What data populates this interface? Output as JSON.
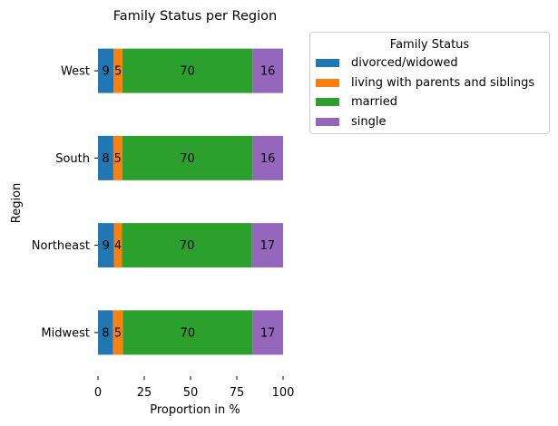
{
  "chart_data": {
    "type": "bar",
    "orientation": "horizontal",
    "stacked": true,
    "title": "Family Status per Region",
    "xlabel": "Proportion in %",
    "ylabel": "Region",
    "xlim": [
      0,
      100
    ],
    "xticks": [
      0,
      25,
      50,
      75,
      100
    ],
    "categories": [
      "West",
      "South",
      "Northeast",
      "Midwest"
    ],
    "series": [
      {
        "name": "divorced/widowed",
        "color": "#1f77b4",
        "values": [
          8.5,
          8.3,
          8.6,
          8.2
        ],
        "labels": [
          "9",
          "8",
          "9",
          "8"
        ]
      },
      {
        "name": "living with parents and siblings",
        "color": "#ff7f0e",
        "values": [
          4.7,
          4.8,
          4.4,
          5.2
        ],
        "labels": [
          "5",
          "5",
          "4",
          "5"
        ]
      },
      {
        "name": "married",
        "color": "#2ca02c",
        "values": [
          70.3,
          70.4,
          70.2,
          70.1
        ],
        "labels": [
          "70",
          "70",
          "70",
          "70"
        ]
      },
      {
        "name": "single",
        "color": "#9467bd",
        "values": [
          16.5,
          16.5,
          16.8,
          16.5
        ],
        "labels": [
          "16",
          "16",
          "17",
          "17"
        ]
      }
    ],
    "grid": false,
    "legend": {
      "title": "Family Status",
      "position": "outside-right"
    }
  }
}
